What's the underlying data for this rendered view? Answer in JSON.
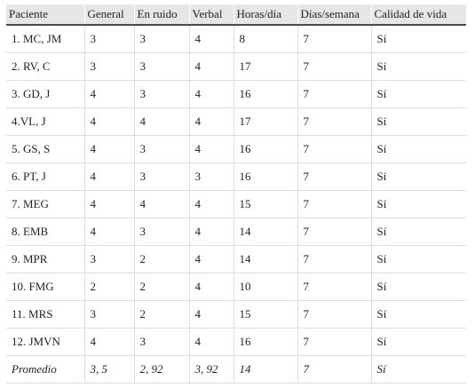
{
  "table": {
    "headers": [
      "Paciente",
      "General",
      "En ruido",
      "Verbal",
      "Horas/día",
      "Días/semana",
      "Calidad de vida"
    ],
    "rows": [
      [
        "1. MC, JM",
        "3",
        "3",
        "4",
        "8",
        "7",
        "Sí"
      ],
      [
        "2. RV, C",
        "3",
        "3",
        "4",
        "17",
        "7",
        "Sí"
      ],
      [
        "3. GD, J",
        "4",
        "3",
        "4",
        "16",
        "7",
        "Sí"
      ],
      [
        "4.VL, J",
        "4",
        "4",
        "4",
        "17",
        "7",
        "Sí"
      ],
      [
        "5. GS, S",
        "4",
        "3",
        "4",
        "16",
        "7",
        "Sí"
      ],
      [
        "6. PT, J",
        "4",
        "3",
        "3",
        "16",
        "7",
        "Sí"
      ],
      [
        "7. MEG",
        "4",
        "4",
        "4",
        "15",
        "7",
        "Sí"
      ],
      [
        "8. EMB",
        "4",
        "3",
        "4",
        "14",
        "7",
        "Sí"
      ],
      [
        "9. MPR",
        "3",
        "2",
        "4",
        "14",
        "7",
        "Sí"
      ],
      [
        "10. FMG",
        "2",
        "2",
        "4",
        "10",
        "7",
        "Sí"
      ],
      [
        "11. MRS",
        "3",
        "2",
        "4",
        "15",
        "7",
        "Sí"
      ],
      [
        "12. JMVN",
        "4",
        "3",
        "4",
        "16",
        "7",
        "Sí"
      ]
    ],
    "average": [
      "Promedio",
      "3, 5",
      "2, 92",
      "3, 92",
      "14",
      "7",
      "Sí"
    ]
  }
}
